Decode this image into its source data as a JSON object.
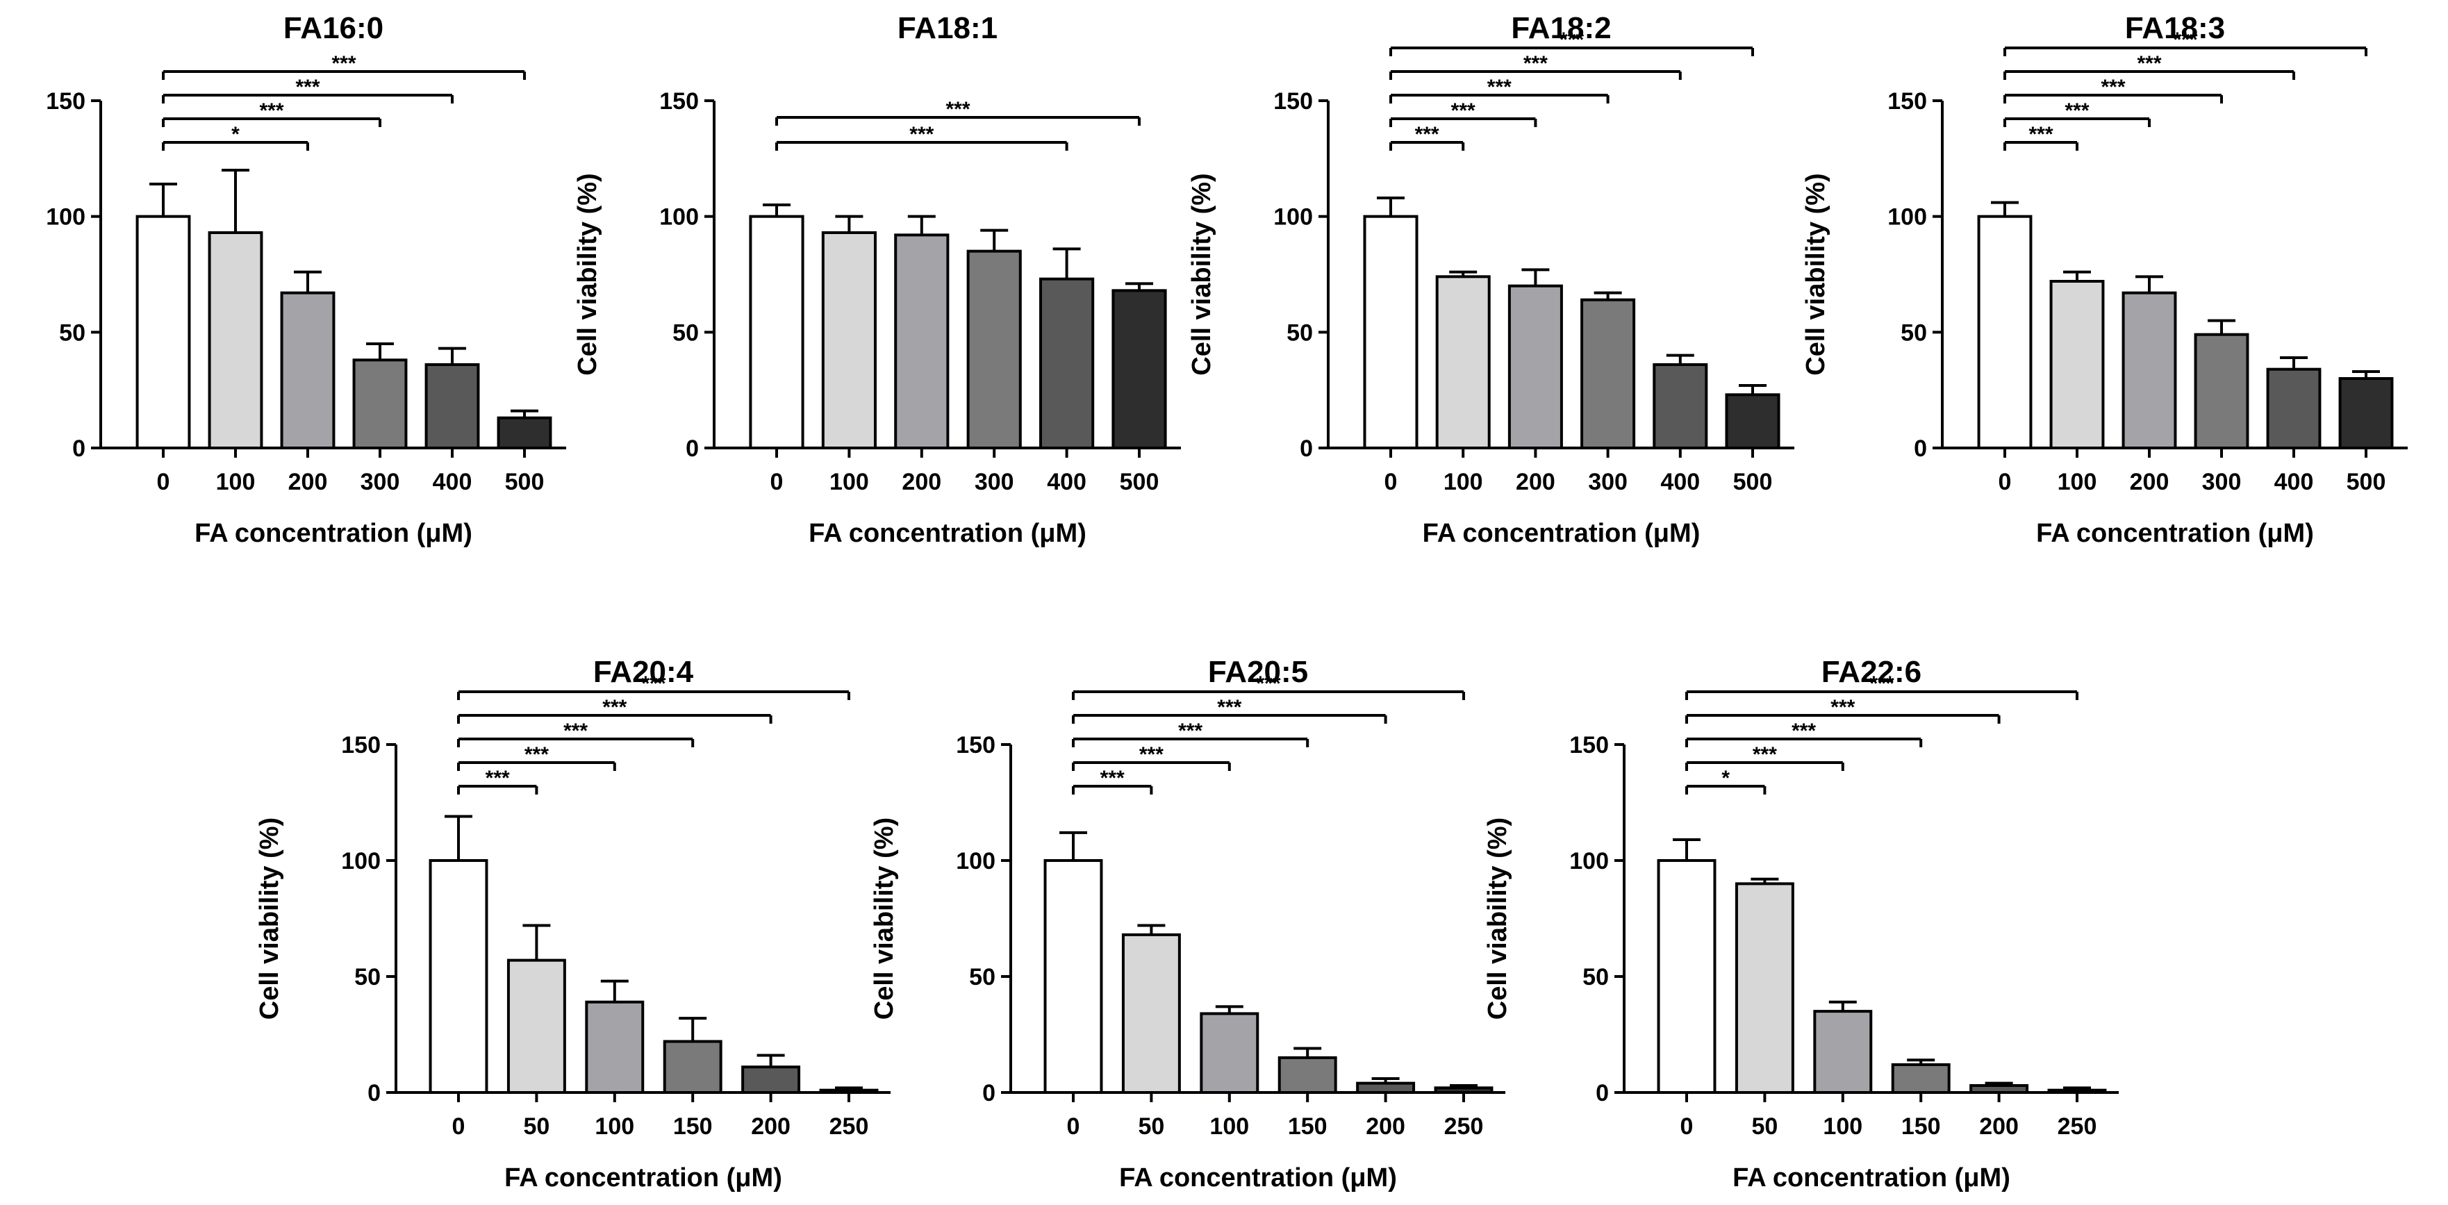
{
  "chart_data": [
    {
      "type": "bar",
      "title": "FA16:0",
      "xlabel": "FA concentration (μM)",
      "ylabel": "Cell viability (%)",
      "ylim": [
        0,
        150
      ],
      "yticks": [
        "0",
        "50",
        "100",
        "150"
      ],
      "categories": [
        "0",
        "100",
        "200",
        "300",
        "400",
        "500"
      ],
      "values": [
        100,
        93,
        67,
        38,
        36,
        13
      ],
      "errors": [
        14,
        27,
        9,
        7,
        7,
        3
      ],
      "bar_colors": [
        "#ffffff",
        "#d7d7d7",
        "#a3a3a8",
        "#7a7a7a",
        "#595959",
        "#2e2e2e"
      ],
      "significance": [
        {
          "from": "0",
          "to": "200",
          "label": "*"
        },
        {
          "from": "0",
          "to": "300",
          "label": "***"
        },
        {
          "from": "0",
          "to": "400",
          "label": "***"
        },
        {
          "from": "0",
          "to": "500",
          "label": "***"
        }
      ]
    },
    {
      "type": "bar",
      "title": "FA18:1",
      "xlabel": "FA concentration (μM)",
      "ylabel": "Cell viability (%)",
      "ylim": [
        0,
        150
      ],
      "yticks": [
        "0",
        "50",
        "100",
        "150"
      ],
      "categories": [
        "0",
        "100",
        "200",
        "300",
        "400",
        "500"
      ],
      "values": [
        100,
        93,
        92,
        85,
        73,
        68
      ],
      "errors": [
        5,
        7,
        8,
        9,
        13,
        3
      ],
      "bar_colors": [
        "#ffffff",
        "#d7d7d7",
        "#a3a3a8",
        "#7a7a7a",
        "#595959",
        "#2e2e2e"
      ],
      "significance": [
        {
          "from": "0",
          "to": "400",
          "label": "***"
        },
        {
          "from": "0",
          "to": "500",
          "label": "***"
        }
      ]
    },
    {
      "type": "bar",
      "title": "FA18:2",
      "xlabel": "FA concentration (μM)",
      "ylabel": "Cell viability (%)",
      "ylim": [
        0,
        150
      ],
      "yticks": [
        "0",
        "50",
        "100",
        "150"
      ],
      "categories": [
        "0",
        "100",
        "200",
        "300",
        "400",
        "500"
      ],
      "values": [
        100,
        74,
        70,
        64,
        36,
        23
      ],
      "errors": [
        8,
        2,
        7,
        3,
        4,
        4
      ],
      "bar_colors": [
        "#ffffff",
        "#d7d7d7",
        "#a3a3a8",
        "#7a7a7a",
        "#595959",
        "#2e2e2e"
      ],
      "significance": [
        {
          "from": "0",
          "to": "100",
          "label": "***"
        },
        {
          "from": "0",
          "to": "200",
          "label": "***"
        },
        {
          "from": "0",
          "to": "300",
          "label": "***"
        },
        {
          "from": "0",
          "to": "400",
          "label": "***"
        },
        {
          "from": "0",
          "to": "500",
          "label": "***"
        }
      ]
    },
    {
      "type": "bar",
      "title": "FA18:3",
      "xlabel": "FA concentration (μM)",
      "ylabel": "Cell viability (%)",
      "ylim": [
        0,
        150
      ],
      "yticks": [
        "0",
        "50",
        "100",
        "150"
      ],
      "categories": [
        "0",
        "100",
        "200",
        "300",
        "400",
        "500"
      ],
      "values": [
        100,
        72,
        67,
        49,
        34,
        30
      ],
      "errors": [
        6,
        4,
        7,
        6,
        5,
        3
      ],
      "bar_colors": [
        "#ffffff",
        "#d7d7d7",
        "#a3a3a8",
        "#7a7a7a",
        "#595959",
        "#2e2e2e"
      ],
      "significance": [
        {
          "from": "0",
          "to": "100",
          "label": "***"
        },
        {
          "from": "0",
          "to": "200",
          "label": "***"
        },
        {
          "from": "0",
          "to": "300",
          "label": "***"
        },
        {
          "from": "0",
          "to": "400",
          "label": "***"
        },
        {
          "from": "0",
          "to": "500",
          "label": "***"
        }
      ]
    },
    {
      "type": "bar",
      "title": "FA20:4",
      "xlabel": "FA concentration (μM)",
      "ylabel": "Cell viability (%)",
      "ylim": [
        0,
        150
      ],
      "yticks": [
        "0",
        "50",
        "100",
        "150"
      ],
      "categories": [
        "0",
        "50",
        "100",
        "150",
        "200",
        "250"
      ],
      "values": [
        100,
        57,
        39,
        22,
        11,
        1
      ],
      "errors": [
        19,
        15,
        9,
        10,
        5,
        1
      ],
      "bar_colors": [
        "#ffffff",
        "#d7d7d7",
        "#a3a3a8",
        "#7a7a7a",
        "#595959",
        "#2e2e2e"
      ],
      "significance": [
        {
          "from": "0",
          "to": "50",
          "label": "***"
        },
        {
          "from": "0",
          "to": "100",
          "label": "***"
        },
        {
          "from": "0",
          "to": "150",
          "label": "***"
        },
        {
          "from": "0",
          "to": "200",
          "label": "***"
        },
        {
          "from": "0",
          "to": "250",
          "label": "***"
        }
      ]
    },
    {
      "type": "bar",
      "title": "FA20:5",
      "xlabel": "FA concentration (μM)",
      "ylabel": "Cell viability (%)",
      "ylim": [
        0,
        150
      ],
      "yticks": [
        "0",
        "50",
        "100",
        "150"
      ],
      "categories": [
        "0",
        "50",
        "100",
        "150",
        "200",
        "250"
      ],
      "values": [
        100,
        68,
        34,
        15,
        4,
        2
      ],
      "errors": [
        12,
        4,
        3,
        4,
        2,
        1
      ],
      "bar_colors": [
        "#ffffff",
        "#d7d7d7",
        "#a3a3a8",
        "#7a7a7a",
        "#595959",
        "#2e2e2e"
      ],
      "significance": [
        {
          "from": "0",
          "to": "50",
          "label": "***"
        },
        {
          "from": "0",
          "to": "100",
          "label": "***"
        },
        {
          "from": "0",
          "to": "150",
          "label": "***"
        },
        {
          "from": "0",
          "to": "200",
          "label": "***"
        },
        {
          "from": "0",
          "to": "250",
          "label": "***"
        }
      ]
    },
    {
      "type": "bar",
      "title": "FA22:6",
      "xlabel": "FA concentration (μM)",
      "ylabel": "Cell viability (%)",
      "ylim": [
        0,
        150
      ],
      "yticks": [
        "0",
        "50",
        "100",
        "150"
      ],
      "categories": [
        "0",
        "50",
        "100",
        "150",
        "200",
        "250"
      ],
      "values": [
        100,
        90,
        35,
        12,
        3,
        1
      ],
      "errors": [
        9,
        2,
        4,
        2,
        1,
        1
      ],
      "bar_colors": [
        "#ffffff",
        "#d7d7d7",
        "#a3a3a8",
        "#7a7a7a",
        "#595959",
        "#2e2e2e"
      ],
      "significance": [
        {
          "from": "0",
          "to": "50",
          "label": "*"
        },
        {
          "from": "0",
          "to": "100",
          "label": "***"
        },
        {
          "from": "0",
          "to": "150",
          "label": "***"
        },
        {
          "from": "0",
          "to": "200",
          "label": "***"
        },
        {
          "from": "0",
          "to": "250",
          "label": "***"
        }
      ]
    }
  ]
}
